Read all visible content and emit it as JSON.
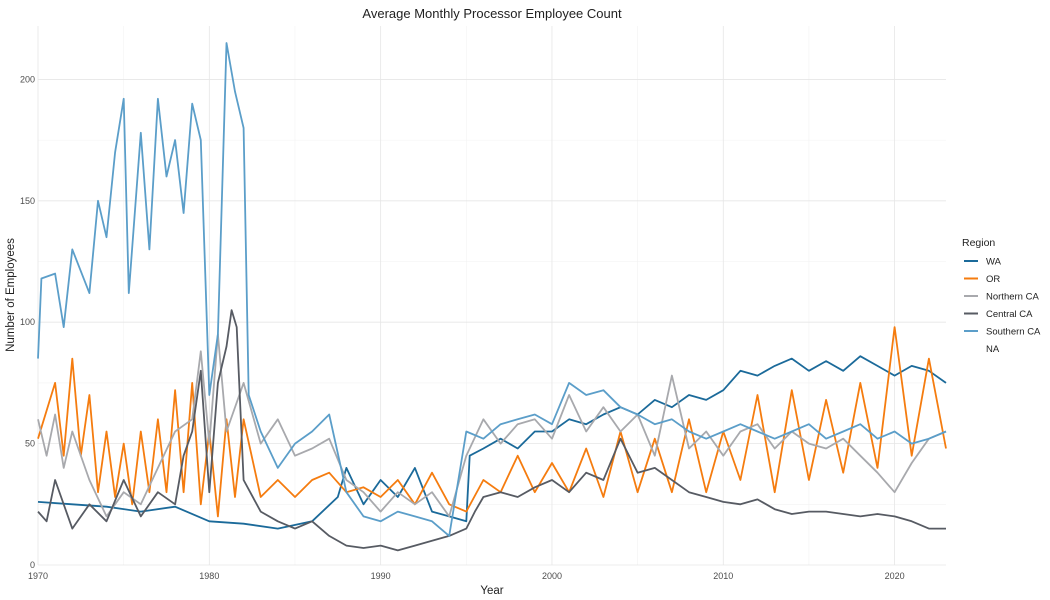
{
  "chart_data": {
    "type": "line",
    "title": "Average Monthly Processor Employee Count",
    "xlabel": "Year",
    "ylabel": "Number of Employees",
    "xlim": [
      1970,
      2023
    ],
    "ylim": [
      0,
      222
    ],
    "x_ticks": [
      1970,
      1980,
      1990,
      2000,
      2010,
      2020
    ],
    "y_ticks": [
      0,
      50,
      100,
      150,
      200
    ],
    "grid": true,
    "legend": {
      "title": "Region",
      "position": "right",
      "entries": [
        "WA",
        "OR",
        "Northern CA",
        "Central CA",
        "Southern CA",
        "NA"
      ]
    },
    "series": [
      {
        "name": "WA",
        "color": "#1b6a9a",
        "points": [
          [
            1970,
            26
          ],
          [
            1972,
            25
          ],
          [
            1974,
            24
          ],
          [
            1976,
            22
          ],
          [
            1978,
            24
          ],
          [
            1980,
            18
          ],
          [
            1982,
            17
          ],
          [
            1984,
            15
          ],
          [
            1986,
            18
          ],
          [
            1987.5,
            28
          ],
          [
            1988,
            40
          ],
          [
            1989,
            25
          ],
          [
            1990,
            35
          ],
          [
            1991,
            28
          ],
          [
            1992,
            40
          ],
          [
            1993,
            22
          ],
          [
            1994,
            20
          ],
          [
            1995,
            18
          ],
          [
            1995.2,
            45
          ],
          [
            1996,
            48
          ],
          [
            1997,
            52
          ],
          [
            1998,
            48
          ],
          [
            1999,
            55
          ],
          [
            2000,
            55
          ],
          [
            2001,
            60
          ],
          [
            2002,
            58
          ],
          [
            2003,
            62
          ],
          [
            2004,
            65
          ],
          [
            2005,
            62
          ],
          [
            2006,
            68
          ],
          [
            2007,
            65
          ],
          [
            2008,
            70
          ],
          [
            2009,
            68
          ],
          [
            2010,
            72
          ],
          [
            2011,
            80
          ],
          [
            2012,
            78
          ],
          [
            2013,
            82
          ],
          [
            2014,
            85
          ],
          [
            2015,
            80
          ],
          [
            2016,
            84
          ],
          [
            2017,
            80
          ],
          [
            2018,
            86
          ],
          [
            2019,
            82
          ],
          [
            2020,
            78
          ],
          [
            2021,
            82
          ],
          [
            2022,
            80
          ],
          [
            2023,
            75
          ]
        ]
      },
      {
        "name": "OR",
        "color": "#f57c0f",
        "points": [
          [
            1970,
            52
          ],
          [
            1971,
            75
          ],
          [
            1971.5,
            45
          ],
          [
            1972,
            85
          ],
          [
            1972.5,
            45
          ],
          [
            1973,
            70
          ],
          [
            1973.5,
            30
          ],
          [
            1974,
            55
          ],
          [
            1974.5,
            28
          ],
          [
            1975,
            50
          ],
          [
            1975.5,
            25
          ],
          [
            1976,
            55
          ],
          [
            1976.5,
            30
          ],
          [
            1977,
            60
          ],
          [
            1977.5,
            30
          ],
          [
            1978,
            72
          ],
          [
            1978.5,
            30
          ],
          [
            1979,
            75
          ],
          [
            1979.5,
            25
          ],
          [
            1980,
            55
          ],
          [
            1980.5,
            20
          ],
          [
            1981,
            60
          ],
          [
            1981.5,
            28
          ],
          [
            1982,
            60
          ],
          [
            1983,
            28
          ],
          [
            1984,
            35
          ],
          [
            1985,
            28
          ],
          [
            1986,
            35
          ],
          [
            1987,
            38
          ],
          [
            1988,
            30
          ],
          [
            1989,
            32
          ],
          [
            1990,
            28
          ],
          [
            1991,
            35
          ],
          [
            1992,
            25
          ],
          [
            1993,
            38
          ],
          [
            1994,
            25
          ],
          [
            1995,
            22
          ],
          [
            1996,
            35
          ],
          [
            1997,
            30
          ],
          [
            1998,
            45
          ],
          [
            1999,
            30
          ],
          [
            2000,
            42
          ],
          [
            2001,
            30
          ],
          [
            2002,
            48
          ],
          [
            2003,
            28
          ],
          [
            2004,
            55
          ],
          [
            2005,
            30
          ],
          [
            2006,
            52
          ],
          [
            2007,
            30
          ],
          [
            2008,
            60
          ],
          [
            2009,
            30
          ],
          [
            2010,
            55
          ],
          [
            2011,
            35
          ],
          [
            2012,
            70
          ],
          [
            2013,
            30
          ],
          [
            2014,
            72
          ],
          [
            2015,
            35
          ],
          [
            2016,
            68
          ],
          [
            2017,
            38
          ],
          [
            2018,
            75
          ],
          [
            2019,
            40
          ],
          [
            2020,
            98
          ],
          [
            2021,
            45
          ],
          [
            2022,
            85
          ],
          [
            2023,
            48
          ]
        ]
      },
      {
        "name": "Northern CA",
        "color": "#a8a9ad",
        "points": [
          [
            1970,
            60
          ],
          [
            1970.5,
            45
          ],
          [
            1971,
            62
          ],
          [
            1971.5,
            40
          ],
          [
            1972,
            55
          ],
          [
            1973,
            35
          ],
          [
            1974,
            20
          ],
          [
            1975,
            30
          ],
          [
            1976,
            25
          ],
          [
            1977,
            40
          ],
          [
            1978,
            55
          ],
          [
            1979,
            60
          ],
          [
            1979.5,
            88
          ],
          [
            1980,
            50
          ],
          [
            1980.5,
            95
          ],
          [
            1981,
            55
          ],
          [
            1982,
            75
          ],
          [
            1983,
            50
          ],
          [
            1984,
            60
          ],
          [
            1985,
            45
          ],
          [
            1986,
            48
          ],
          [
            1987,
            52
          ],
          [
            1988,
            35
          ],
          [
            1989,
            30
          ],
          [
            1990,
            22
          ],
          [
            1991,
            30
          ],
          [
            1992,
            25
          ],
          [
            1993,
            30
          ],
          [
            1994,
            20
          ],
          [
            1995,
            45
          ],
          [
            1996,
            60
          ],
          [
            1997,
            50
          ],
          [
            1998,
            58
          ],
          [
            1999,
            60
          ],
          [
            2000,
            52
          ],
          [
            2001,
            70
          ],
          [
            2002,
            55
          ],
          [
            2003,
            65
          ],
          [
            2004,
            55
          ],
          [
            2005,
            62
          ],
          [
            2006,
            45
          ],
          [
            2007,
            78
          ],
          [
            2008,
            48
          ],
          [
            2009,
            55
          ],
          [
            2010,
            45
          ],
          [
            2011,
            55
          ],
          [
            2012,
            58
          ],
          [
            2013,
            48
          ],
          [
            2014,
            55
          ],
          [
            2015,
            50
          ],
          [
            2016,
            48
          ],
          [
            2017,
            52
          ],
          [
            2018,
            45
          ],
          [
            2019,
            38
          ],
          [
            2020,
            30
          ],
          [
            2021,
            42
          ],
          [
            2022,
            52
          ],
          [
            2023,
            55
          ]
        ]
      },
      {
        "name": "Central CA",
        "color": "#575b63",
        "points": [
          [
            1970,
            22
          ],
          [
            1970.5,
            18
          ],
          [
            1971,
            35
          ],
          [
            1972,
            15
          ],
          [
            1973,
            25
          ],
          [
            1974,
            18
          ],
          [
            1975,
            35
          ],
          [
            1976,
            20
          ],
          [
            1977,
            30
          ],
          [
            1978,
            25
          ],
          [
            1978.5,
            45
          ],
          [
            1979,
            55
          ],
          [
            1979.5,
            80
          ],
          [
            1980,
            30
          ],
          [
            1980.5,
            75
          ],
          [
            1981,
            90
          ],
          [
            1981.3,
            105
          ],
          [
            1981.6,
            98
          ],
          [
            1982,
            35
          ],
          [
            1983,
            22
          ],
          [
            1984,
            18
          ],
          [
            1985,
            15
          ],
          [
            1986,
            18
          ],
          [
            1987,
            12
          ],
          [
            1988,
            8
          ],
          [
            1989,
            7
          ],
          [
            1990,
            8
          ],
          [
            1991,
            6
          ],
          [
            1992,
            8
          ],
          [
            1993,
            10
          ],
          [
            1994,
            12
          ],
          [
            1995,
            15
          ],
          [
            1995.5,
            22
          ],
          [
            1996,
            28
          ],
          [
            1997,
            30
          ],
          [
            1998,
            28
          ],
          [
            1999,
            32
          ],
          [
            2000,
            35
          ],
          [
            2001,
            30
          ],
          [
            2002,
            38
          ],
          [
            2003,
            35
          ],
          [
            2004,
            52
          ],
          [
            2005,
            38
          ],
          [
            2006,
            40
          ],
          [
            2007,
            35
          ],
          [
            2008,
            30
          ],
          [
            2009,
            28
          ],
          [
            2010,
            26
          ],
          [
            2011,
            25
          ],
          [
            2012,
            27
          ],
          [
            2013,
            23
          ],
          [
            2014,
            21
          ],
          [
            2015,
            22
          ],
          [
            2016,
            22
          ],
          [
            2017,
            21
          ],
          [
            2018,
            20
          ],
          [
            2019,
            21
          ],
          [
            2020,
            20
          ],
          [
            2021,
            18
          ],
          [
            2022,
            15
          ],
          [
            2023,
            15
          ]
        ]
      },
      {
        "name": "Southern CA",
        "color": "#5b9ec9",
        "points": [
          [
            1970,
            85
          ],
          [
            1970.2,
            118
          ],
          [
            1971,
            120
          ],
          [
            1971.5,
            98
          ],
          [
            1972,
            130
          ],
          [
            1973,
            112
          ],
          [
            1973.5,
            150
          ],
          [
            1974,
            135
          ],
          [
            1974.5,
            170
          ],
          [
            1975,
            192
          ],
          [
            1975.3,
            112
          ],
          [
            1976,
            178
          ],
          [
            1976.5,
            130
          ],
          [
            1977,
            192
          ],
          [
            1977.5,
            160
          ],
          [
            1978,
            175
          ],
          [
            1978.5,
            145
          ],
          [
            1979,
            190
          ],
          [
            1979.5,
            175
          ],
          [
            1980,
            70
          ],
          [
            1980.5,
            95
          ],
          [
            1981,
            215
          ],
          [
            1981.5,
            195
          ],
          [
            1982,
            180
          ],
          [
            1982.3,
            70
          ],
          [
            1983,
            55
          ],
          [
            1984,
            40
          ],
          [
            1985,
            50
          ],
          [
            1986,
            55
          ],
          [
            1987,
            62
          ],
          [
            1988,
            30
          ],
          [
            1989,
            20
          ],
          [
            1990,
            18
          ],
          [
            1991,
            22
          ],
          [
            1992,
            20
          ],
          [
            1993,
            18
          ],
          [
            1994,
            12
          ],
          [
            1995,
            55
          ],
          [
            1996,
            52
          ],
          [
            1997,
            58
          ],
          [
            1998,
            60
          ],
          [
            1999,
            62
          ],
          [
            2000,
            58
          ],
          [
            2001,
            75
          ],
          [
            2002,
            70
          ],
          [
            2003,
            72
          ],
          [
            2004,
            65
          ],
          [
            2005,
            62
          ],
          [
            2006,
            58
          ],
          [
            2007,
            60
          ],
          [
            2008,
            55
          ],
          [
            2009,
            52
          ],
          [
            2010,
            55
          ],
          [
            2011,
            58
          ],
          [
            2012,
            55
          ],
          [
            2013,
            52
          ],
          [
            2014,
            55
          ],
          [
            2015,
            58
          ],
          [
            2016,
            52
          ],
          [
            2017,
            55
          ],
          [
            2018,
            58
          ],
          [
            2019,
            52
          ],
          [
            2020,
            55
          ],
          [
            2021,
            50
          ],
          [
            2022,
            52
          ],
          [
            2023,
            55
          ]
        ]
      }
    ]
  }
}
